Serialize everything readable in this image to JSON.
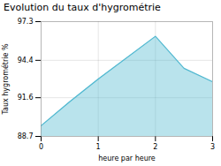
{
  "chart_data": {
    "type": "area",
    "title": "Evolution du taux d'hygrométrie",
    "xlabel": "heure par heure",
    "ylabel": "Taux hygrométrie %",
    "x": [
      0,
      0.5,
      1,
      2,
      2.5,
      3
    ],
    "values": [
      89.5,
      91.3,
      93.0,
      96.2,
      93.8,
      92.8
    ],
    "xlim": [
      0,
      3
    ],
    "ylim": [
      88.7,
      97.3
    ],
    "xticks": [
      0,
      1,
      2,
      3
    ],
    "yticks": [
      88.7,
      91.6,
      94.4,
      97.3
    ],
    "color": "#50b8d0",
    "grid": true
  }
}
